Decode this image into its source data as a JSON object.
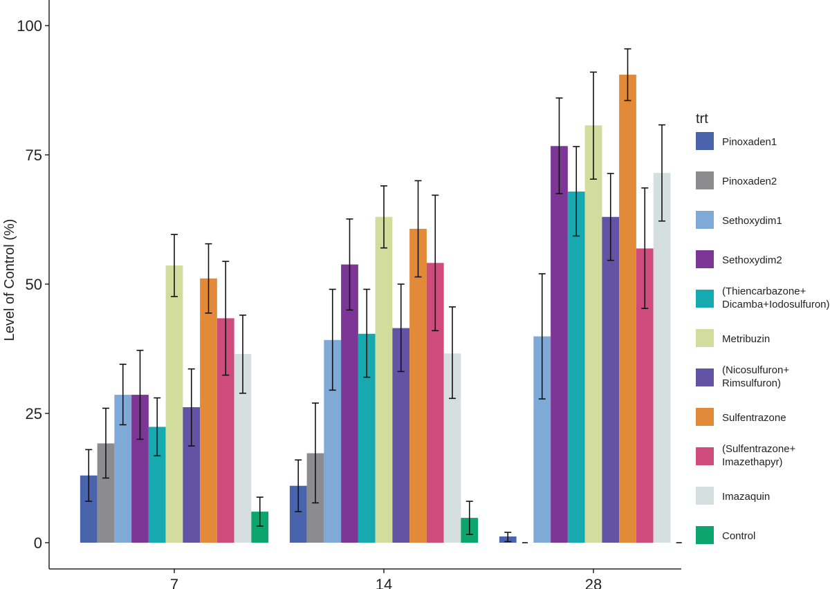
{
  "chart_data": {
    "type": "bar",
    "xlabel": "",
    "ylabel": "Level of Control (%)",
    "ylim": [
      0,
      105
    ],
    "yticks": [
      0,
      25,
      50,
      75,
      100
    ],
    "categories": [
      "7",
      "14",
      "28"
    ],
    "legend_title": "trt",
    "legend_position": "right",
    "grid": false,
    "series": [
      {
        "name": "Pinoxaden1",
        "color": "#4a63ad",
        "values": [
          13,
          11,
          1.2
        ],
        "err_low": [
          8,
          6,
          0.2
        ],
        "err_high": [
          18,
          16,
          2
        ]
      },
      {
        "name": "Pinoxaden2",
        "color": "#8c8c8e",
        "values": [
          19.2,
          17.3,
          0
        ],
        "err_low": [
          12.5,
          7.7,
          0
        ],
        "err_high": [
          26,
          27,
          0
        ]
      },
      {
        "name": "Sethoxydim1",
        "color": "#7fa9d6",
        "values": [
          28.6,
          39.2,
          39.9
        ],
        "err_low": [
          22.8,
          29.5,
          27.8
        ],
        "err_high": [
          34.5,
          49,
          52
        ]
      },
      {
        "name": "Sethoxydim2",
        "color": "#7b3696",
        "values": [
          28.6,
          53.8,
          76.7
        ],
        "err_low": [
          20,
          45,
          67.5
        ],
        "err_high": [
          37.2,
          62.6,
          86
        ]
      },
      {
        "name": "(Thiencarbazone+\nDicamba+Iodosulfuron)",
        "color": "#17a9b0",
        "values": [
          22.4,
          40.4,
          67.9
        ],
        "err_low": [
          16.8,
          32,
          59.3
        ],
        "err_high": [
          28,
          49,
          76.6
        ]
      },
      {
        "name": "Metribuzin",
        "color": "#d2dc9c",
        "values": [
          53.6,
          63,
          80.7
        ],
        "err_low": [
          47.6,
          57,
          70.3
        ],
        "err_high": [
          59.6,
          69,
          91
        ]
      },
      {
        "name": "(Nicosulfuron+\nRimsulfuron)",
        "color": "#6353a5",
        "values": [
          26.2,
          41.5,
          63
        ],
        "err_low": [
          18.7,
          33.1,
          54.6
        ],
        "err_high": [
          33.6,
          50,
          71.4
        ]
      },
      {
        "name": "Sulfentrazone",
        "color": "#e28a37",
        "values": [
          51.1,
          60.7,
          90.5
        ],
        "err_low": [
          44.4,
          51.4,
          85.5
        ],
        "err_high": [
          57.8,
          70,
          95.5
        ]
      },
      {
        "name": "(Sulfentrazone+\nImazethapyr)",
        "color": "#cd4c7b",
        "values": [
          43.4,
          54.1,
          56.9
        ],
        "err_low": [
          32.4,
          41,
          45.3
        ],
        "err_high": [
          54.4,
          67.2,
          68.6
        ]
      },
      {
        "name": "Imazaquin",
        "color": "#d5dfe0",
        "values": [
          36.5,
          36.6,
          71.5
        ],
        "err_low": [
          28.9,
          27.9,
          62.2
        ],
        "err_high": [
          44,
          45.6,
          80.8
        ]
      },
      {
        "name": "Control",
        "color": "#0ca56e",
        "values": [
          6,
          4.8,
          0
        ],
        "err_low": [
          3.2,
          1.6,
          0
        ],
        "err_high": [
          8.8,
          8,
          0
        ]
      }
    ]
  }
}
